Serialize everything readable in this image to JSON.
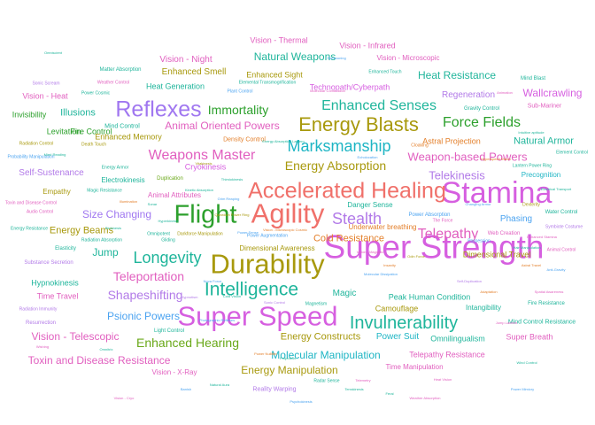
{
  "palette": {
    "pink": "#e15fbf",
    "magenta": "#d65fe0",
    "purple": "#a077f0",
    "violet": "#b27ae8",
    "blue": "#4ba3f0",
    "teal": "#1fb59b",
    "cyan": "#1eb5c4",
    "green": "#2ca02c",
    "lime": "#69a818",
    "olive": "#a8990d",
    "orange": "#e37f2a",
    "salmon": "#f0706a"
  },
  "words": [
    {
      "text": "Super Strength",
      "color": "magenta",
      "weight": 37
    },
    {
      "text": "Stamina",
      "color": "magenta",
      "weight": 34
    },
    {
      "text": "Durability",
      "color": "olive",
      "weight": 31
    },
    {
      "text": "Super Speed",
      "color": "magenta",
      "weight": 31
    },
    {
      "text": "Agility",
      "color": "salmon",
      "weight": 31
    },
    {
      "text": "Flight",
      "color": "green",
      "weight": 29
    },
    {
      "text": "Accelerated Healing",
      "color": "salmon",
      "weight": 25
    },
    {
      "text": "Reflexes",
      "color": "purple",
      "weight": 25
    },
    {
      "text": "Energy Blasts",
      "color": "olive",
      "weight": 22
    },
    {
      "text": "Intelligence",
      "color": "teal",
      "weight": 21
    },
    {
      "text": "Invulnerability",
      "color": "teal",
      "weight": 20
    },
    {
      "text": "Longevity",
      "color": "teal",
      "weight": 18
    },
    {
      "text": "Stealth",
      "color": "violet",
      "weight": 18
    },
    {
      "text": "Marksmanship",
      "color": "cyan",
      "weight": 18
    },
    {
      "text": "Weapons Master",
      "color": "pink",
      "weight": 16
    },
    {
      "text": "Enhanced Senses",
      "color": "teal",
      "weight": 16
    },
    {
      "text": "Telepathy",
      "color": "pink",
      "weight": 16
    },
    {
      "text": "Force Fields",
      "color": "green",
      "weight": 16
    },
    {
      "text": "Immortality",
      "color": "green",
      "weight": 14
    },
    {
      "text": "Shapeshifting",
      "color": "violet",
      "weight": 14
    },
    {
      "text": "Teleportation",
      "color": "pink",
      "weight": 14
    },
    {
      "text": "Enhanced Hearing",
      "color": "lime",
      "weight": 14
    },
    {
      "text": "Energy Absorption",
      "color": "olive",
      "weight": 14
    },
    {
      "text": "Telekinesis",
      "color": "violet",
      "weight": 13
    },
    {
      "text": "Weapon-based Powers",
      "color": "pink",
      "weight": 13
    },
    {
      "text": "Size Changing",
      "color": "purple",
      "weight": 12
    },
    {
      "text": "Psionic Powers",
      "color": "blue",
      "weight": 12
    },
    {
      "text": "Natural Weapons",
      "color": "teal",
      "weight": 12
    },
    {
      "text": "Animal Oriented Powers",
      "color": "pink",
      "weight": 12
    },
    {
      "text": "Heat Resistance",
      "color": "teal",
      "weight": 12
    },
    {
      "text": "Illusions",
      "color": "teal",
      "weight": 11
    },
    {
      "text": "Energy Beams",
      "color": "olive",
      "weight": 11
    },
    {
      "text": "Jump",
      "color": "teal",
      "weight": 12
    },
    {
      "text": "Molecular Manipulation",
      "color": "cyan",
      "weight": 12
    },
    {
      "text": "Energy Manipulation",
      "color": "olive",
      "weight": 12
    },
    {
      "text": "Toxin and Disease Resistance",
      "color": "pink",
      "weight": 12
    },
    {
      "text": "Vision - Telescopic",
      "color": "pink",
      "weight": 12
    },
    {
      "text": "Wallcrawling",
      "color": "magenta",
      "weight": 12
    },
    {
      "text": "Natural Armor",
      "color": "teal",
      "weight": 11
    },
    {
      "text": "Cold Resistance",
      "color": "orange",
      "weight": 11
    },
    {
      "text": "Energy Constructs",
      "color": "olive",
      "weight": 11
    },
    {
      "text": "Enhanced Smell",
      "color": "olive",
      "weight": 10
    },
    {
      "text": "Vision - Night",
      "color": "pink",
      "weight": 10
    },
    {
      "text": "Self-Sustenance",
      "color": "violet",
      "weight": 10
    },
    {
      "text": "Magic",
      "color": "teal",
      "weight": 10
    },
    {
      "text": "Phasing",
      "color": "blue",
      "weight": 10
    },
    {
      "text": "Regeneration",
      "color": "violet",
      "weight": 10
    },
    {
      "text": "Cryokinesis",
      "color": "magenta",
      "weight": 9
    },
    {
      "text": "Power Suit",
      "color": "cyan",
      "weight": 10
    },
    {
      "text": "Time Travel",
      "color": "pink",
      "weight": 9
    },
    {
      "text": "Omnilingualism",
      "color": "teal",
      "weight": 9
    },
    {
      "text": "Peak Human Condition",
      "color": "teal",
      "weight": 9
    },
    {
      "text": "Technopath/Cyberpath",
      "color": "magenta",
      "weight": 9
    },
    {
      "text": "Vision - Thermal",
      "color": "pink",
      "weight": 9
    },
    {
      "text": "Vision - Infrared",
      "color": "pink",
      "weight": 9
    },
    {
      "text": "Vision - Heat",
      "color": "pink",
      "weight": 9
    },
    {
      "text": "Enhanced Sight",
      "color": "olive",
      "weight": 9
    },
    {
      "text": "Heat Generation",
      "color": "teal",
      "weight": 9
    },
    {
      "text": "Fire Control",
      "color": "green",
      "weight": 9
    },
    {
      "text": "Levitation",
      "color": "green",
      "weight": 9
    },
    {
      "text": "Invisibility",
      "color": "green",
      "weight": 9
    },
    {
      "text": "Enhanced Memory",
      "color": "olive",
      "weight": 9
    },
    {
      "text": "Astral Projection",
      "color": "orange",
      "weight": 9
    },
    {
      "text": "Hypnokinesis",
      "color": "teal",
      "weight": 9
    },
    {
      "text": "Telepathy Resistance",
      "color": "pink",
      "weight": 9
    },
    {
      "text": "Super Breath",
      "color": "pink",
      "weight": 9
    },
    {
      "text": "Vision - X-Ray",
      "color": "pink",
      "weight": 8
    },
    {
      "text": "Camouflage",
      "color": "olive",
      "weight": 9
    },
    {
      "text": "Intangibility",
      "color": "teal",
      "weight": 8
    },
    {
      "text": "Empathy",
      "color": "olive",
      "weight": 8
    },
    {
      "text": "Danger Sense",
      "color": "teal",
      "weight": 8
    },
    {
      "text": "Dimensional Travel",
      "color": "olive",
      "weight": 9
    },
    {
      "text": "Underwater breathing",
      "color": "orange",
      "weight": 8
    },
    {
      "text": "Time Manipulation",
      "color": "pink",
      "weight": 8
    },
    {
      "text": "Dimensional Awareness",
      "color": "olive",
      "weight": 8
    },
    {
      "text": "Animal Attributes",
      "color": "pink",
      "weight": 8
    },
    {
      "text": "Electrokinesis",
      "color": "teal",
      "weight": 8
    },
    {
      "text": "Vision - Microscopic",
      "color": "pink",
      "weight": 8
    },
    {
      "text": "Precognition",
      "color": "cyan",
      "weight": 8
    },
    {
      "text": "Mind Control Resistance",
      "color": "teal",
      "weight": 7
    },
    {
      "text": "Mind Control",
      "color": "teal",
      "weight": 7
    },
    {
      "text": "Density Control",
      "color": "orange",
      "weight": 7
    },
    {
      "text": "Reality Warping",
      "color": "violet",
      "weight": 7
    },
    {
      "text": "Light Control",
      "color": "teal",
      "weight": 6
    },
    {
      "text": "Resurrection",
      "color": "violet",
      "weight": 6
    },
    {
      "text": "Elasticity",
      "color": "teal",
      "weight": 6
    },
    {
      "text": "Duplication",
      "color": "lime",
      "weight": 6
    },
    {
      "text": "Sub-Mariner",
      "color": "pink",
      "weight": 7
    },
    {
      "text": "Gravity Control",
      "color": "teal",
      "weight": 6
    },
    {
      "text": "Substance Secretion",
      "color": "violet",
      "weight": 6
    },
    {
      "text": "Matter Absorption",
      "color": "teal",
      "weight": 6
    },
    {
      "text": "Radiation Immunity",
      "color": "violet",
      "weight": 5
    },
    {
      "text": "Fire Resistance",
      "color": "teal",
      "weight": 6
    },
    {
      "text": "Water Control",
      "color": "teal",
      "weight": 6
    },
    {
      "text": "Power Absorption",
      "color": "blue",
      "weight": 6
    },
    {
      "text": "Energy Armor",
      "color": "teal",
      "weight": 5
    },
    {
      "text": "Radiation Control",
      "color": "olive",
      "weight": 5
    },
    {
      "text": "Probability Manipulation",
      "color": "blue",
      "weight": 5
    },
    {
      "text": "Energy Resistance",
      "color": "teal",
      "weight": 5
    },
    {
      "text": "Mind Blast",
      "color": "teal",
      "weight": 6
    },
    {
      "text": "Web Creation",
      "color": "pink",
      "weight": 6
    },
    {
      "text": "Element Control",
      "color": "teal",
      "weight": 5
    },
    {
      "text": "Magnetism",
      "color": "teal",
      "weight": 5
    },
    {
      "text": "Sonic Scream",
      "color": "violet",
      "weight": 5
    },
    {
      "text": "Weather Control",
      "color": "pink",
      "weight": 5
    },
    {
      "text": "Magic Resistance",
      "color": "teal",
      "weight": 5
    },
    {
      "text": "Darkforce Manipulation",
      "color": "olive",
      "weight": 5
    },
    {
      "text": "Power Augmentation",
      "color": "blue",
      "weight": 5
    },
    {
      "text": "Lantern Power Ring",
      "color": "teal",
      "weight": 5
    },
    {
      "text": "Enhanced Touch",
      "color": "teal",
      "weight": 5
    },
    {
      "text": "Toxin and Disease Control",
      "color": "pink",
      "weight": 5
    },
    {
      "text": "Radiation Absorption",
      "color": "teal",
      "weight": 5
    },
    {
      "text": "Gliding",
      "color": "teal",
      "weight": 5
    },
    {
      "text": "Death Touch",
      "color": "olive",
      "weight": 5
    },
    {
      "text": "Power Cosmic",
      "color": "teal",
      "weight": 5
    },
    {
      "text": "Plant Control",
      "color": "blue",
      "weight": 5
    },
    {
      "text": "Elemental Transmogrification",
      "color": "teal",
      "weight": 5
    },
    {
      "text": "The Force",
      "color": "pink",
      "weight": 5
    },
    {
      "text": "Possession",
      "color": "blue",
      "weight": 5
    },
    {
      "text": "Radar Sense",
      "color": "teal",
      "weight": 5
    },
    {
      "text": "Symbiote Costume",
      "color": "violet",
      "weight": 5
    },
    {
      "text": "Animal Control",
      "color": "pink",
      "weight": 5
    },
    {
      "text": "Cloaking",
      "color": "orange",
      "weight": 5
    },
    {
      "text": "Dexterity",
      "color": "olive",
      "weight": 5
    },
    {
      "text": "Omnipotent",
      "color": "teal",
      "weight": 5
    },
    {
      "text": "Audio Control",
      "color": "pink",
      "weight": 5
    },
    {
      "text": "Photographic Reflexes",
      "color": "blue",
      "weight": 4
    },
    {
      "text": "Vitakinesis",
      "color": "olive",
      "weight": 4
    },
    {
      "text": "Hyperkinesis",
      "color": "teal",
      "weight": 4
    },
    {
      "text": "Illumination",
      "color": "orange",
      "weight": 4
    },
    {
      "text": "Changing Armor",
      "color": "blue",
      "weight": 4
    },
    {
      "text": "Power Nullifier",
      "color": "orange",
      "weight": 4
    },
    {
      "text": "Omniscient",
      "color": "teal",
      "weight": 4
    },
    {
      "text": "Spatial Awareness",
      "color": "pink",
      "weight": 4
    },
    {
      "text": "Banish",
      "color": "blue",
      "weight": 4
    },
    {
      "text": "Wind Control",
      "color": "teal",
      "weight": 4
    },
    {
      "text": "Odin Force",
      "color": "olive",
      "weight": 4
    },
    {
      "text": "Self-Duplication",
      "color": "violet",
      "weight": 4
    },
    {
      "text": "Vision - Cryo",
      "color": "pink",
      "weight": 4
    },
    {
      "text": "Thirstokinesis",
      "color": "teal",
      "weight": 4
    },
    {
      "text": "Hair Manipulation",
      "color": "teal",
      "weight": 4
    },
    {
      "text": "Telemetry",
      "color": "pink",
      "weight": 4
    },
    {
      "text": "Projection",
      "color": "teal",
      "weight": 4
    },
    {
      "text": "Qwardian Power Ring",
      "color": "olive",
      "weight": 4
    },
    {
      "text": "Adaptation",
      "color": "orange",
      "weight": 4
    },
    {
      "text": "Omnitrix",
      "color": "teal",
      "weight": 4
    },
    {
      "text": "Echolocation",
      "color": "blue",
      "weight": 4
    },
    {
      "text": "Sonar",
      "color": "teal",
      "weight": 4
    },
    {
      "text": "Vision - Microscopic Cosmic",
      "color": "orange",
      "weight": 4
    },
    {
      "text": "Power Sense",
      "color": "blue",
      "weight": 4
    },
    {
      "text": "Natural Aura",
      "color": "teal",
      "weight": 4
    },
    {
      "text": "Intuitive aptitude",
      "color": "teal",
      "weight": 4
    },
    {
      "text": "Animation",
      "color": "pink",
      "weight": 4
    },
    {
      "text": "Sonic Control",
      "color": "violet",
      "weight": 4
    },
    {
      "text": "Insanity",
      "color": "orange",
      "weight": 4
    },
    {
      "text": "Biokinesis",
      "color": "teal",
      "weight": 4
    },
    {
      "text": "Hyperspeed Vision",
      "color": "orange",
      "weight": 4
    },
    {
      "text": "Anti-Gravity",
      "color": "blue",
      "weight": 4
    },
    {
      "text": "Terrakinesis",
      "color": "teal",
      "weight": 4
    },
    {
      "text": "Grim Reaping",
      "color": "blue",
      "weight": 4
    },
    {
      "text": "Wishing",
      "color": "pink",
      "weight": 4
    },
    {
      "text": "Electrical Transport",
      "color": "teal",
      "weight": 4
    },
    {
      "text": "Nova Force",
      "color": "blue",
      "weight": 4
    },
    {
      "text": "Molecular Combustion",
      "color": "pink",
      "weight": 4
    },
    {
      "text": "Molecular Dissipation",
      "color": "blue",
      "weight": 4
    },
    {
      "text": "Jump Lantern",
      "color": "pink",
      "weight": 4
    },
    {
      "text": "Feral",
      "color": "teal",
      "weight": 4
    },
    {
      "text": "Summoning",
      "color": "blue",
      "weight": 4
    },
    {
      "text": "Astral Travel",
      "color": "orange",
      "weight": 4
    },
    {
      "text": "Energy Absorption Lantern",
      "color": "teal",
      "weight": 4
    },
    {
      "text": "Heat Vision",
      "color": "pink",
      "weight": 4
    },
    {
      "text": "Cold Vision",
      "color": "teal",
      "weight": 4
    },
    {
      "text": "Enhanced Stamina",
      "color": "pink",
      "weight": 4
    },
    {
      "text": "Power Mimicry",
      "color": "blue",
      "weight": 4
    },
    {
      "text": "Mind Reading",
      "color": "teal",
      "weight": 4
    },
    {
      "text": "Hypnotism",
      "color": "violet",
      "weight": 4
    },
    {
      "text": "Vision - Magnetic",
      "color": "pink",
      "weight": 4
    },
    {
      "text": "Psychokinesis",
      "color": "blue",
      "weight": 4
    },
    {
      "text": "Kinetic Absorption",
      "color": "teal",
      "weight": 4
    },
    {
      "text": "Weather Absorption",
      "color": "pink",
      "weight": 4
    }
  ]
}
